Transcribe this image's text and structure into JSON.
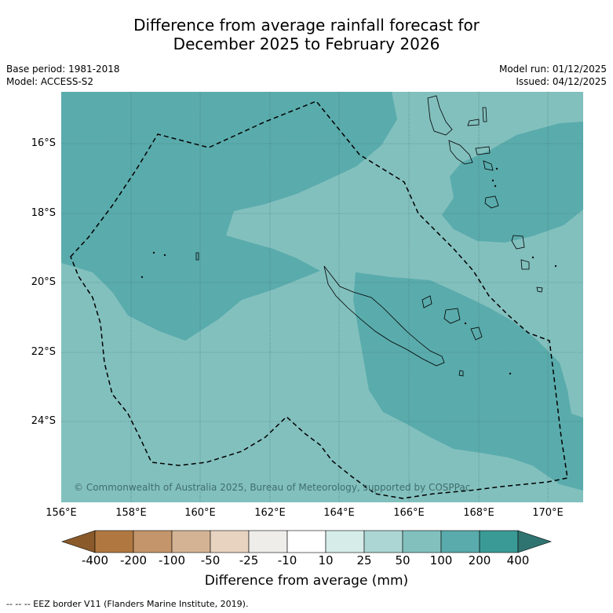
{
  "title_line1": "Difference from average rainfall forecast for",
  "title_line2": "December 2025 to February 2026",
  "base_period": "Base period: 1981-2018",
  "model": "Model: ACCESS-S2",
  "model_run": "Model run: 01/12/2025",
  "issued": "Issued: 04/12/2025",
  "lat_labels": [
    "16°S",
    "18°S",
    "20°S",
    "22°S",
    "24°S"
  ],
  "lon_labels": [
    "156°E",
    "158°E",
    "160°E",
    "162°E",
    "164°E",
    "166°E",
    "168°E",
    "170°E"
  ],
  "copyright": "© Commonwealth of Australia 2025, Bureau of Meteorology, supported by COSPPac",
  "colorbar": {
    "ticks": [
      "-400",
      "-200",
      "-100",
      "-50",
      "-25",
      "-10",
      "10",
      "25",
      "50",
      "100",
      "200",
      "400"
    ],
    "colors": [
      "#8a5a2b",
      "#b07840",
      "#c4956a",
      "#d4b394",
      "#e8d3c0",
      "#efedea",
      "#ffffff",
      "#d6ece9",
      "#acd6d3",
      "#82c0be",
      "#5aabac",
      "#3a9a96",
      "#2f7470"
    ],
    "label": "Difference from average (mm)"
  },
  "legend_footnote": "--  --  -- EEZ border V11 (Flanders Marine Institute, 2019)."
}
